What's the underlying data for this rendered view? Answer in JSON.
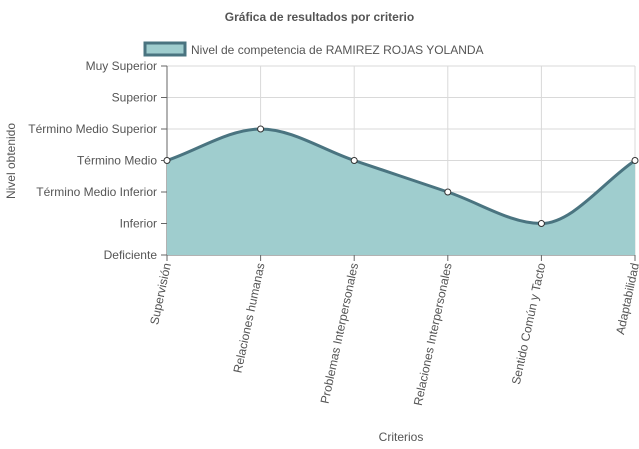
{
  "chart_data": {
    "type": "area",
    "title": "Gráfica de resultados por criterio",
    "xlabel": "Criterios",
    "ylabel": "Nivel obtenido",
    "categories": [
      "Supervisión",
      "Relaciones humanas",
      "Problemas Interpersonales",
      "Relaciones Interpersonales",
      "Sentido Común y Tacto",
      "Adaptabilidad"
    ],
    "y_levels": [
      "Deficiente",
      "Inferior",
      "Término Medio Inferior",
      "Término Medio",
      "Término Medio Superior",
      "Superior",
      "Muy Superior"
    ],
    "series": [
      {
        "name": "Nivel de competencia de RAMIREZ ROJAS YOLANDA",
        "values": [
          3,
          4,
          3,
          2,
          1,
          3
        ],
        "value_labels": [
          "Término Medio",
          "Término Medio Superior",
          "Término Medio",
          "Término Medio Inferior",
          "Inferior",
          "Término Medio"
        ]
      }
    ],
    "ylim": [
      0,
      6
    ],
    "grid": true,
    "legend_position": "top",
    "colors": {
      "fill": "#9fcdce",
      "line": "#4a7480",
      "grid": "#d9d9d9",
      "axis": "#666666",
      "text": "#555555"
    }
  }
}
